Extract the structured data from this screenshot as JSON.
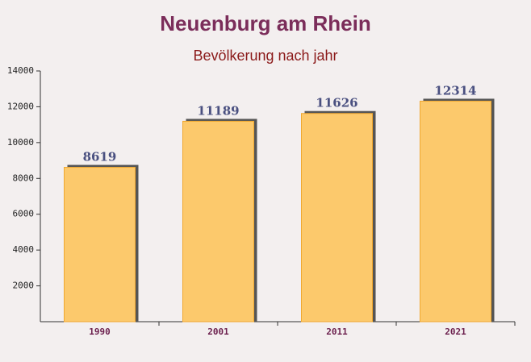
{
  "chart_data": {
    "type": "bar",
    "title": "Neuenburg am Rhein",
    "subtitle": "Bevölkerung nach jahr",
    "categories": [
      "1990",
      "2001",
      "2011",
      "2021"
    ],
    "values": [
      8619,
      11189,
      11626,
      12314
    ],
    "color": "#fcc96c",
    "ylim": [
      0,
      14000
    ],
    "yticks": [
      2000,
      4000,
      6000,
      8000,
      10000,
      12000,
      14000
    ]
  }
}
